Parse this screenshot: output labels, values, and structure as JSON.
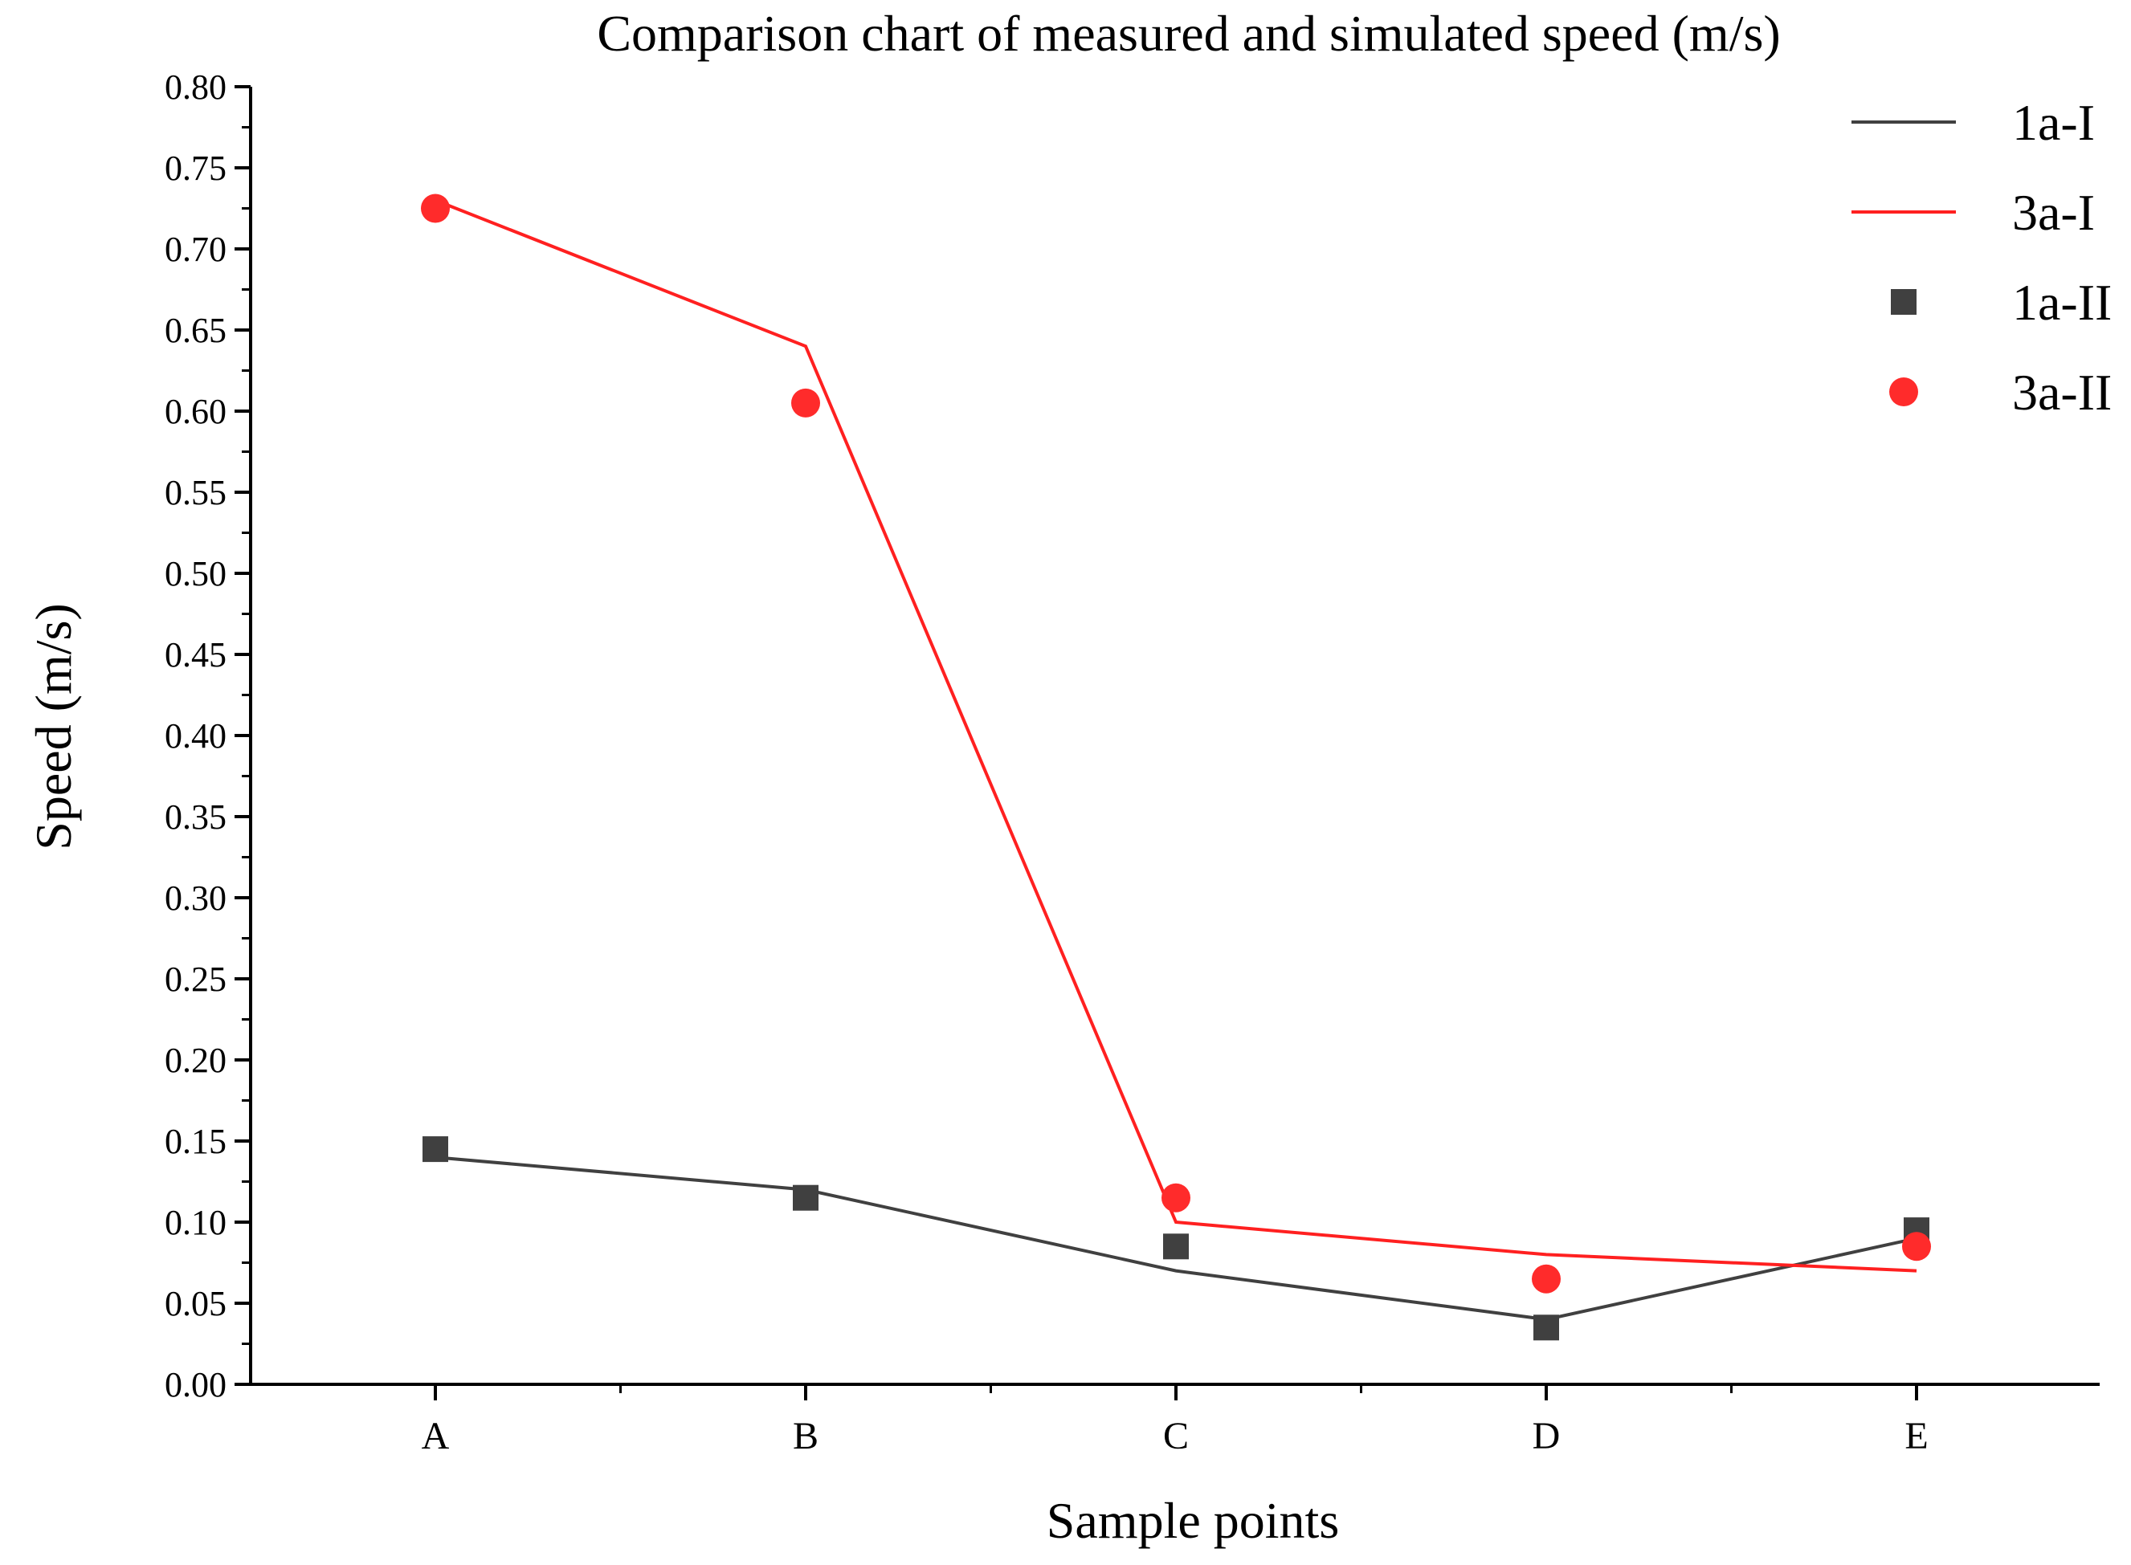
{
  "chart_data": {
    "type": "line",
    "title": "Comparison chart of measured and simulated speed (m/s)",
    "xlabel": "Sample points",
    "ylabel": "Speed (m/s)",
    "categories": [
      "A",
      "B",
      "C",
      "D",
      "E"
    ],
    "ylim": [
      0,
      0.8
    ],
    "yticks": [
      "0.00",
      "0.05",
      "0.10",
      "0.15",
      "0.20",
      "0.25",
      "0.30",
      "0.35",
      "0.40",
      "0.45",
      "0.50",
      "0.55",
      "0.60",
      "0.65",
      "0.70",
      "0.75",
      "0.80"
    ],
    "grid": false,
    "legend_position": "top-right",
    "series": [
      {
        "name": "1a-I",
        "kind": "line",
        "color": "#404040",
        "values": [
          0.14,
          0.12,
          0.07,
          0.04,
          0.09
        ]
      },
      {
        "name": "3a-I",
        "kind": "line",
        "color": "#ff2020",
        "values": [
          0.73,
          0.64,
          0.1,
          0.08,
          0.07
        ]
      },
      {
        "name": "1a-II",
        "kind": "scatter",
        "marker": "square",
        "color": "#404040",
        "values": [
          0.145,
          0.115,
          0.085,
          0.035,
          0.095
        ]
      },
      {
        "name": "3a-II",
        "kind": "scatter",
        "marker": "circle",
        "color": "#ff2b2b",
        "values": [
          0.725,
          0.605,
          0.115,
          0.065,
          0.085
        ]
      }
    ]
  }
}
